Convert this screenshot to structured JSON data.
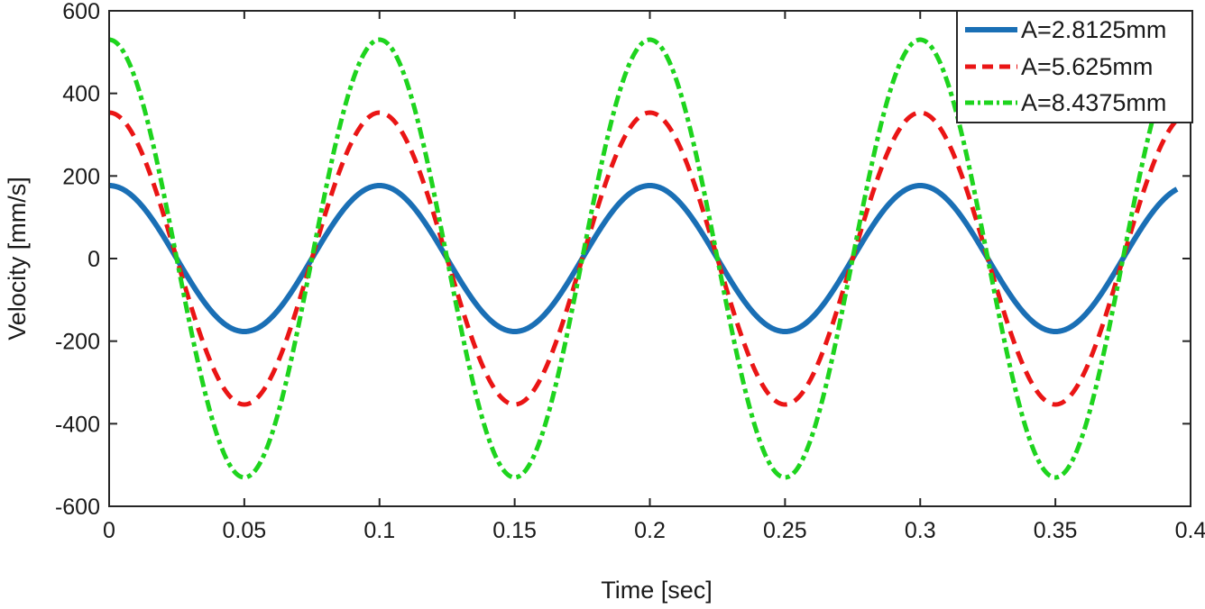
{
  "chart_data": {
    "type": "line",
    "title": "",
    "xlabel": "Time [sec]",
    "ylabel": "Velocity [mm/s]",
    "xlim": [
      0,
      0.4
    ],
    "ylim": [
      -600,
      600
    ],
    "x_ticks": [
      0,
      0.05,
      0.1,
      0.15,
      0.2,
      0.25,
      0.3,
      0.35,
      0.4
    ],
    "x_tick_labels": [
      "0",
      "0.05",
      "0.1",
      "0.15",
      "0.2",
      "0.25",
      "0.3",
      "0.35",
      "0.4"
    ],
    "y_ticks": [
      600,
      400,
      200,
      0,
      -200,
      -400,
      -600
    ],
    "y_tick_labels": [
      "600",
      "400",
      "200",
      "0",
      "-200",
      "-400",
      "-600"
    ],
    "grid": false,
    "legend_position": "northeast",
    "waveform": "cosine",
    "frequency_hz": 10,
    "t_start": 0,
    "t_end": 0.395,
    "series": [
      {
        "label": "A=2.8125mm",
        "amplitude_mm": 2.8125,
        "velocity_amplitude_mm_s": 176.7,
        "color": "#1a6fb5",
        "line_style": "solid",
        "line_width": 6
      },
      {
        "label": "A=5.625mm",
        "amplitude_mm": 5.625,
        "velocity_amplitude_mm_s": 353.4,
        "color": "#ea1515",
        "line_style": "dashed",
        "line_width": 5
      },
      {
        "label": "A=8.4375mm",
        "amplitude_mm": 8.4375,
        "velocity_amplitude_mm_s": 530.1,
        "color": "#1ed41e",
        "line_style": "dashdot",
        "line_width": 5
      }
    ],
    "axis_color": "#262626",
    "text_color": "#1a1a1a",
    "background": "#ffffff"
  }
}
